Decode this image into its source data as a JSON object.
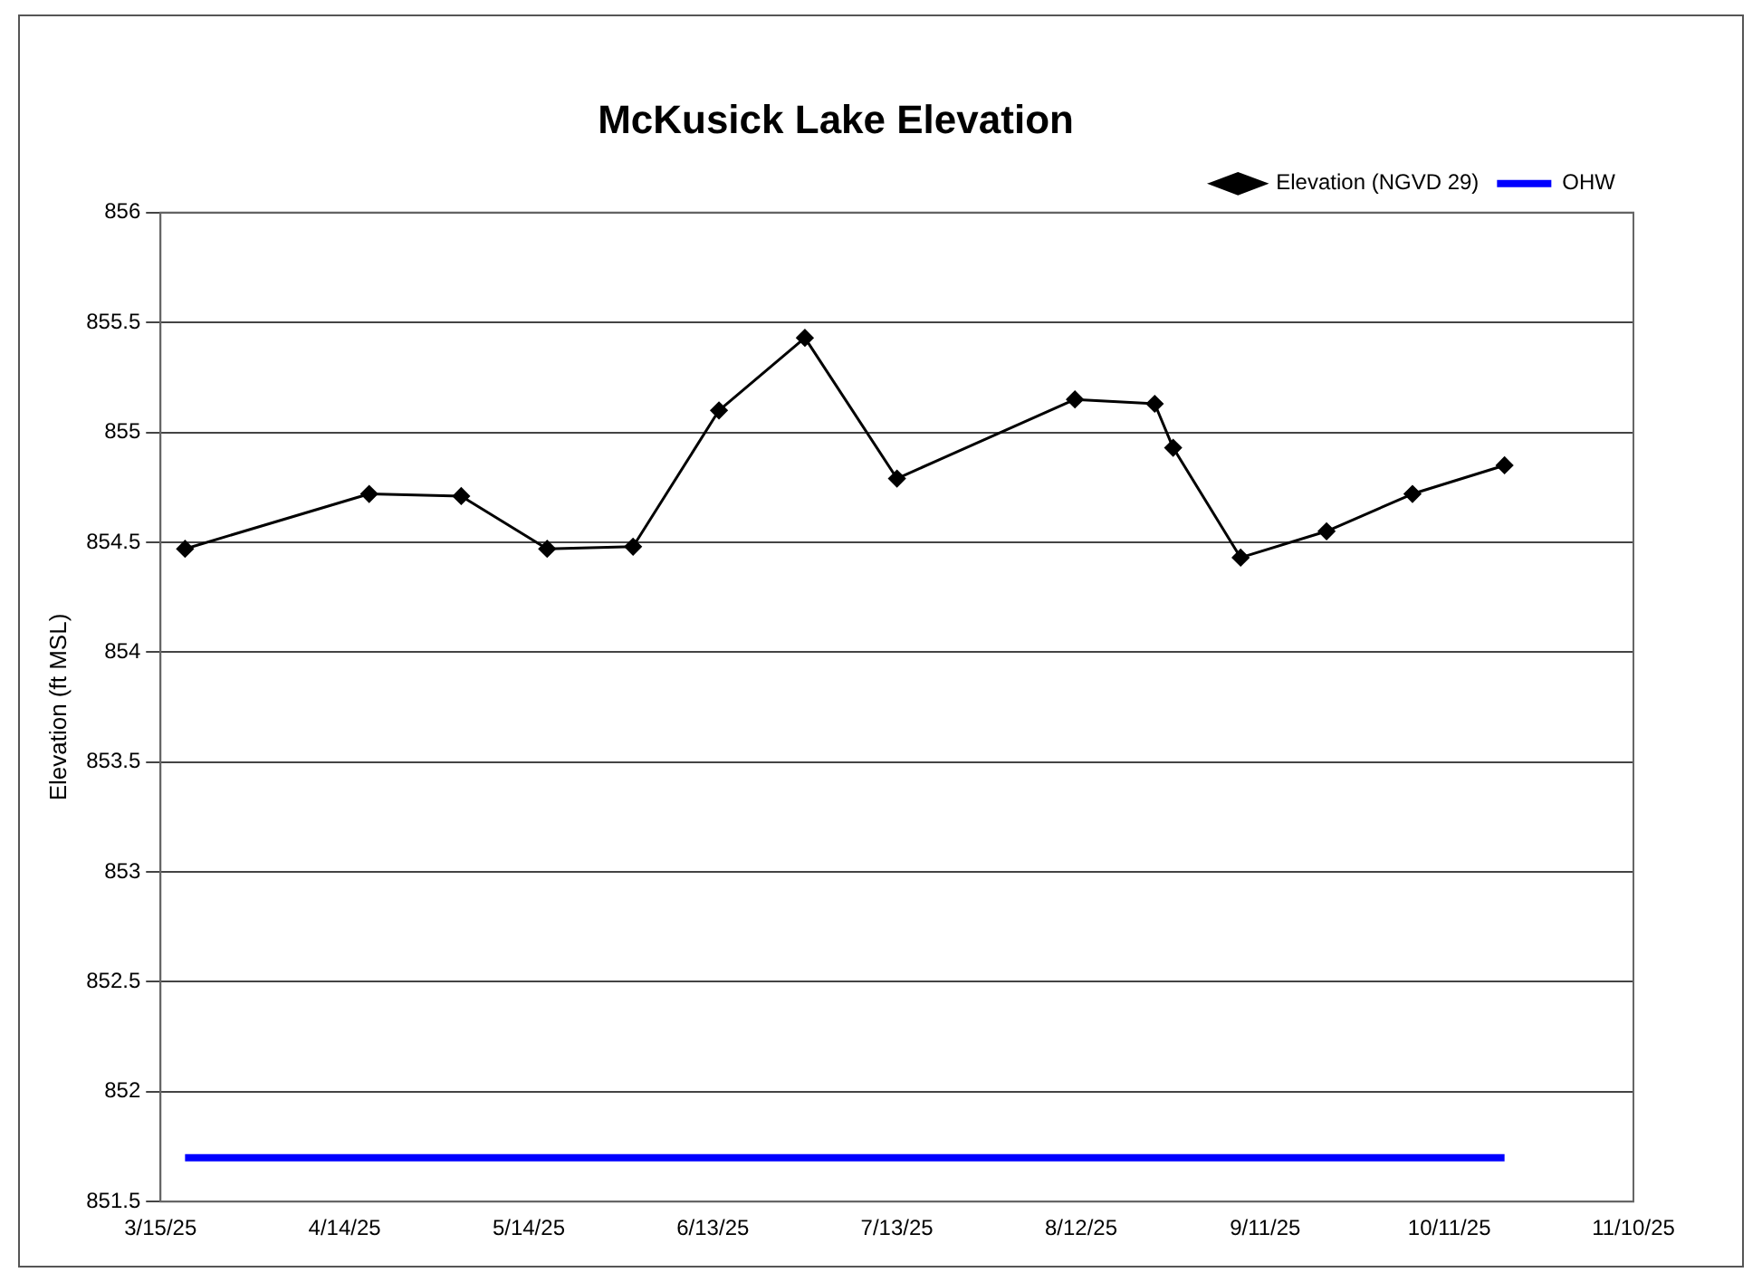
{
  "chart_data": {
    "type": "line",
    "title": "McKusick Lake Elevation",
    "ylabel": "Elevation (ft MSL)",
    "series": [
      {
        "name": "Elevation (NGVD 29)",
        "color": "#000000",
        "marker": "diamond",
        "x": [
          "2025-03-19",
          "2025-04-18",
          "2025-05-03",
          "2025-05-17",
          "2025-05-31",
          "2025-06-14",
          "2025-06-28",
          "2025-07-13",
          "2025-08-11",
          "2025-08-24",
          "2025-08-27",
          "2025-09-07",
          "2025-09-21",
          "2025-10-05",
          "2025-10-20"
        ],
        "values": [
          854.47,
          854.72,
          854.71,
          854.47,
          854.48,
          855.1,
          855.43,
          854.79,
          855.15,
          855.13,
          854.93,
          854.43,
          854.55,
          854.72,
          854.85
        ]
      },
      {
        "name": "OHW",
        "color": "#0000ff",
        "marker": "none",
        "x": [
          "2025-03-19",
          "2025-10-20"
        ],
        "values": [
          851.7,
          851.7
        ]
      }
    ],
    "xlim": [
      "2025-03-15",
      "2025-11-10"
    ],
    "xticks": [
      {
        "value": "2025-03-15",
        "label": "3/15/25"
      },
      {
        "value": "2025-04-14",
        "label": "4/14/25"
      },
      {
        "value": "2025-05-14",
        "label": "5/14/25"
      },
      {
        "value": "2025-06-13",
        "label": "6/13/25"
      },
      {
        "value": "2025-07-13",
        "label": "7/13/25"
      },
      {
        "value": "2025-08-12",
        "label": "8/12/25"
      },
      {
        "value": "2025-09-11",
        "label": "9/11/25"
      },
      {
        "value": "2025-10-11",
        "label": "10/11/25"
      },
      {
        "value": "2025-11-10",
        "label": "11/10/25"
      }
    ],
    "ylim": [
      851.5,
      856
    ],
    "yticks": [
      851.5,
      852,
      852.5,
      853,
      853.5,
      854,
      854.5,
      855,
      855.5,
      856
    ],
    "grid": "y",
    "legend": "top right",
    "line_style": "solid"
  }
}
